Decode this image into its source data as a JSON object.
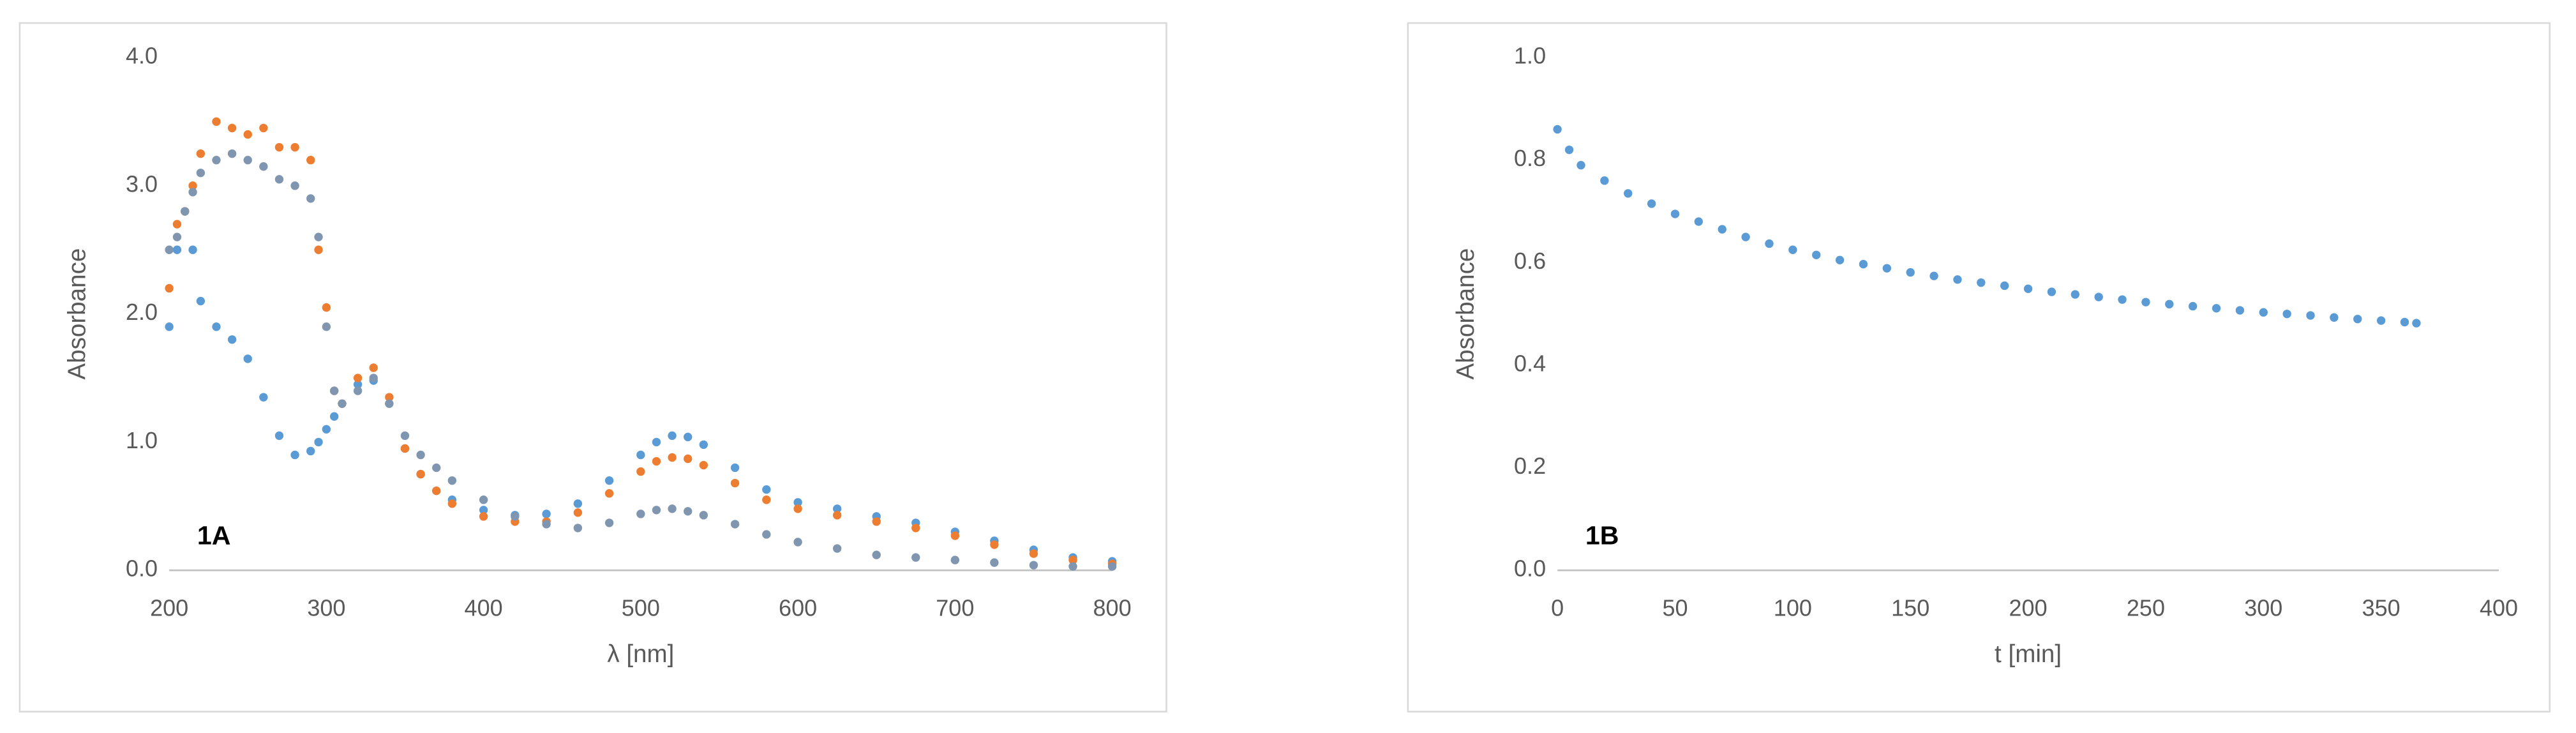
{
  "chart_data": [
    {
      "type": "scatter",
      "annotation": "1A",
      "ylabel": "Absorbance",
      "xlabel": "λ [nm]",
      "xlim": [
        200,
        800
      ],
      "ylim": [
        0,
        4
      ],
      "xticks": [
        200,
        300,
        400,
        500,
        600,
        700,
        800
      ],
      "yticks": [
        {
          "value": 0,
          "label": "0.0"
        },
        {
          "value": 1,
          "label": "1.0"
        },
        {
          "value": 2,
          "label": "2.0"
        },
        {
          "value": 3,
          "label": "3.0"
        },
        {
          "value": 4,
          "label": "4.0"
        }
      ],
      "x": [
        200,
        205,
        210,
        215,
        220,
        230,
        240,
        250,
        260,
        270,
        280,
        290,
        295,
        300,
        305,
        310,
        320,
        330,
        340,
        350,
        360,
        370,
        380,
        400,
        420,
        440,
        460,
        480,
        500,
        510,
        520,
        530,
        540,
        560,
        580,
        600,
        625,
        650,
        675,
        700,
        725,
        750,
        775,
        800
      ],
      "series": [
        {
          "color": "#5b9bd5",
          "values": [
            1.9,
            2.5,
            2.8,
            2.5,
            2.1,
            1.9,
            1.8,
            1.65,
            1.35,
            1.05,
            0.9,
            0.93,
            1.0,
            1.1,
            1.2,
            1.3,
            1.45,
            1.48,
            1.3,
            0.95,
            0.75,
            0.62,
            0.55,
            0.47,
            0.43,
            0.44,
            0.52,
            0.7,
            0.9,
            1.0,
            1.05,
            1.04,
            0.98,
            0.8,
            0.63,
            0.53,
            0.48,
            0.42,
            0.37,
            0.3,
            0.23,
            0.16,
            0.1,
            0.07
          ]
        },
        {
          "color": "#ed7d31",
          "values": [
            2.2,
            2.7,
            2.8,
            3.0,
            3.25,
            3.5,
            3.45,
            3.4,
            3.45,
            3.3,
            3.3,
            3.2,
            2.5,
            2.05,
            1.4,
            1.3,
            1.5,
            1.58,
            1.35,
            0.95,
            0.75,
            0.62,
            0.52,
            0.42,
            0.38,
            0.38,
            0.45,
            0.6,
            0.77,
            0.85,
            0.88,
            0.87,
            0.82,
            0.68,
            0.55,
            0.48,
            0.43,
            0.38,
            0.33,
            0.27,
            0.2,
            0.13,
            0.08,
            0.05
          ]
        },
        {
          "color": "#8096b0",
          "values": [
            2.5,
            2.6,
            2.8,
            2.95,
            3.1,
            3.2,
            3.25,
            3.2,
            3.15,
            3.05,
            3.0,
            2.9,
            2.6,
            1.9,
            1.4,
            1.3,
            1.4,
            1.5,
            1.3,
            1.05,
            0.9,
            0.8,
            0.7,
            0.55,
            0.42,
            0.36,
            0.33,
            0.37,
            0.44,
            0.47,
            0.48,
            0.46,
            0.43,
            0.36,
            0.28,
            0.22,
            0.17,
            0.12,
            0.1,
            0.08,
            0.06,
            0.04,
            0.03,
            0.03
          ]
        }
      ]
    },
    {
      "type": "scatter",
      "annotation": "1B",
      "ylabel": "Absorbance",
      "xlabel": "t [min]",
      "xlim": [
        0,
        400
      ],
      "ylim": [
        0,
        1
      ],
      "xticks": [
        0,
        50,
        100,
        150,
        200,
        250,
        300,
        350,
        400
      ],
      "yticks": [
        {
          "value": 0,
          "label": "0.0"
        },
        {
          "value": 0.2,
          "label": "0.2"
        },
        {
          "value": 0.4,
          "label": "0.4"
        },
        {
          "value": 0.6,
          "label": "0.6"
        },
        {
          "value": 0.8,
          "label": "0.8"
        },
        {
          "value": 1,
          "label": "1.0"
        }
      ],
      "x": [
        0,
        5,
        10,
        20,
        30,
        40,
        50,
        60,
        70,
        80,
        90,
        100,
        110,
        120,
        130,
        140,
        150,
        160,
        170,
        180,
        190,
        200,
        210,
        220,
        230,
        240,
        250,
        260,
        270,
        280,
        290,
        300,
        310,
        320,
        330,
        340,
        350,
        360,
        365
      ],
      "series": [
        {
          "color": "#5b9bd5",
          "values": [
            0.86,
            0.82,
            0.79,
            0.76,
            0.735,
            0.715,
            0.695,
            0.68,
            0.665,
            0.65,
            0.637,
            0.625,
            0.615,
            0.605,
            0.597,
            0.589,
            0.581,
            0.574,
            0.567,
            0.561,
            0.555,
            0.549,
            0.543,
            0.538,
            0.533,
            0.528,
            0.523,
            0.519,
            0.515,
            0.511,
            0.507,
            0.503,
            0.5,
            0.497,
            0.493,
            0.49,
            0.487,
            0.484,
            0.482
          ]
        }
      ]
    }
  ]
}
